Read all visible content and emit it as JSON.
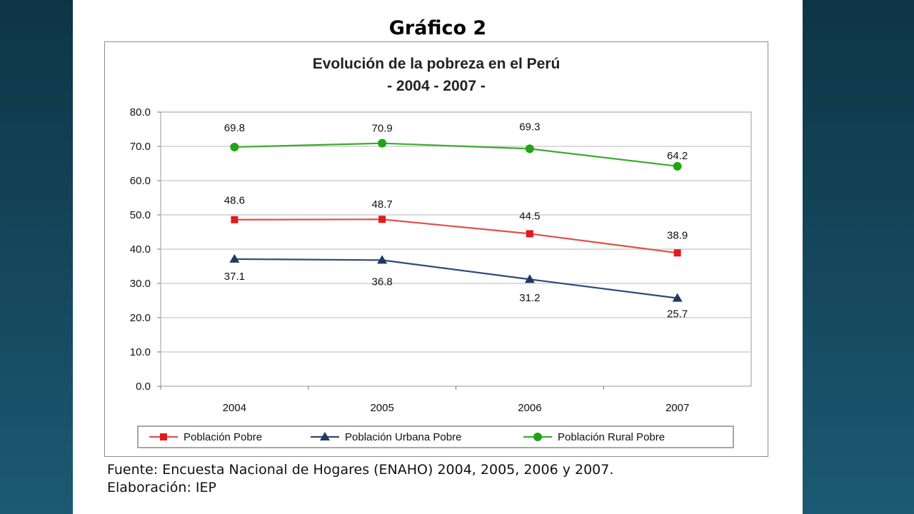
{
  "slide": {
    "heading": "Gráfico 2",
    "source": "Fuente: Encuesta Nacional de Hogares (ENAHO) 2004, 2005, 2006 y 2007.",
    "credits": "Elaboración: IEP"
  },
  "chart_data": {
    "type": "line",
    "title": "Evolución de la pobreza en el Perú",
    "subtitle": "- 2004 - 2007 -",
    "categories": [
      "2004",
      "2005",
      "2006",
      "2007"
    ],
    "ylim": [
      0,
      80
    ],
    "yticks": [
      "0.0",
      "10.0",
      "20.0",
      "30.0",
      "40.0",
      "50.0",
      "60.0",
      "70.0",
      "80.0"
    ],
    "grid": true,
    "legend_position": "bottom",
    "series": [
      {
        "name": "Población Pobre",
        "values": [
          48.6,
          48.7,
          44.5,
          38.9
        ],
        "labels": [
          "48.6",
          "48.7",
          "44.5",
          "38.9"
        ],
        "color": "#e0504b",
        "marker_color": "#e01b1b",
        "marker": "square"
      },
      {
        "name": "Población Urbana Pobre",
        "values": [
          37.1,
          36.8,
          31.2,
          25.7
        ],
        "labels": [
          "37.1",
          "36.8",
          "31.2",
          "25.7"
        ],
        "color": "#2e4a7a",
        "marker_color": "#1f3864",
        "marker": "triangle"
      },
      {
        "name": "Población Rural Pobre",
        "values": [
          69.8,
          70.9,
          69.3,
          64.2
        ],
        "labels": [
          "69.8",
          "70.9",
          "69.3",
          "64.2"
        ],
        "color": "#3cab2e",
        "marker_color": "#22a314",
        "marker": "circle"
      }
    ]
  }
}
